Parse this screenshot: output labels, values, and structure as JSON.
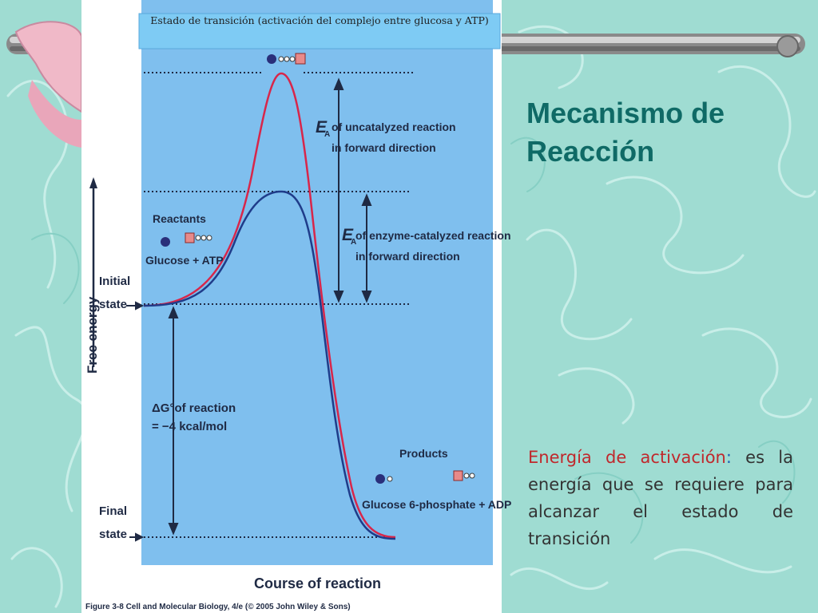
{
  "slide": {
    "title": "Mecanismo de Reacción",
    "definition_term": "Energía de activación",
    "definition_colon": ":",
    "definition_text": " es la energía que se requiere para alcanzar el estado de transición"
  },
  "figure": {
    "banner": "Estado de transición (activación del complejo entre glucosa y ATP)",
    "y_axis_label": "Free energy",
    "x_axis_label": "Course of reaction",
    "initial_state": [
      "Initial",
      "state"
    ],
    "final_state": [
      "Final",
      "state"
    ],
    "reactants_heading": "Reactants",
    "reactants_label": "Glucose + ATP",
    "products_heading": "Products",
    "products_label": "Glucose 6-phosphate + ADP",
    "ea_symbol": "E",
    "ea_subscript": "A",
    "ea_uncatalyzed": [
      "of uncatalyzed reaction",
      "in forward direction"
    ],
    "ea_catalyzed": [
      "of enzyme-catalyzed reaction",
      "in forward direction"
    ],
    "delta_g": [
      "ΔG°of reaction",
      "= −4 kcal/mol"
    ],
    "caption": "Figure 3-8 Cell and Molecular Biology, 4/e (© 2005 John Wiley & Sons)"
  },
  "colors": {
    "background": "#9fdcd2",
    "title": "#0f6a66",
    "term": "#c0282c",
    "figure_bg": "#7fbfee",
    "uncatalyzed_curve": "#d8264a",
    "catalyzed_curve": "#1f3c8a"
  },
  "chart_data": {
    "type": "line",
    "series": [
      {
        "color": "#d8264a",
        "points": [
          "initial state",
          "high transition peak",
          "final state"
        ]
      },
      {
        "color": "#1f3c8a",
        "points": [
          "initial state",
          "lower transition peak",
          "final state"
        ]
      }
    ],
    "xlabel": "Course of reaction",
    "ylabel": "Free energy",
    "annotations": [
      "E A of uncatalyzed reaction in forward direction",
      "E A of enzyme-catalyzed reaction in forward direction",
      "ΔG°of reaction = −4 kcal/mol"
    ]
  }
}
